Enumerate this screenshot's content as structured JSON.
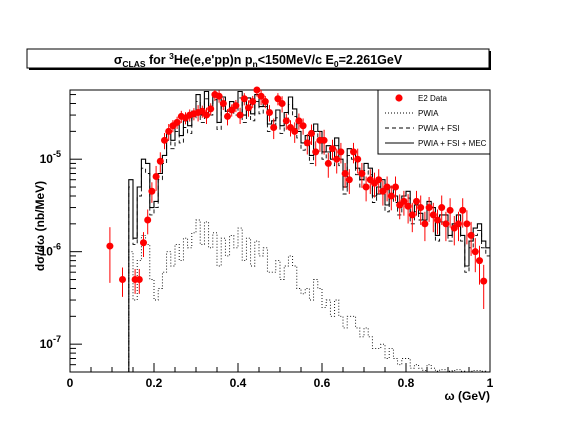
{
  "title": {
    "sigma": "σ",
    "sigma_sub": "CLAS",
    "for": " for ",
    "he_sup": "3",
    "reaction": "He(e,e'pp)n p",
    "pn_sub": "n",
    "cut": "<150MeV/c E",
    "e0_sub": "0",
    "energy": "=2.261GeV"
  },
  "axes": {
    "xlabel": "ω (GeV)",
    "ylabel": "dσ/dω (nb/MeV)",
    "x_ticks": [
      "0",
      "0.2",
      "0.4",
      "0.6",
      "0.8",
      "1"
    ],
    "y_ticks": [
      {
        "base": "10",
        "exp": "-7",
        "value": 1e-07
      },
      {
        "base": "10",
        "exp": "-6",
        "value": 1e-06
      },
      {
        "base": "10",
        "exp": "-5",
        "value": 1e-05
      }
    ]
  },
  "legend": {
    "position": "top-right",
    "items": [
      {
        "label": "E2 Data",
        "style": "marker"
      },
      {
        "label": "PWIA",
        "style": "dotted"
      },
      {
        "label": "PWIA + FSI",
        "style": "dashed"
      },
      {
        "label": "PWIA + FSI + MEC",
        "style": "solid"
      }
    ]
  },
  "colors": {
    "data": "#ff0000",
    "frame": "#000000",
    "curves": "#000000"
  },
  "chart_data": {
    "type": "scatter",
    "xlim": [
      0,
      1
    ],
    "ylim": [
      5e-08,
      5.6e-05
    ],
    "yscale": "log",
    "x_bin_width": 0.01,
    "series": [
      {
        "name": "E2 Data",
        "kind": "points_with_errors",
        "x": [
          0.095,
          0.125,
          0.155,
          0.165,
          0.175,
          0.185,
          0.195,
          0.205,
          0.215,
          0.225,
          0.235,
          0.245,
          0.255,
          0.265,
          0.275,
          0.285,
          0.295,
          0.305,
          0.315,
          0.325,
          0.335,
          0.345,
          0.355,
          0.365,
          0.375,
          0.385,
          0.395,
          0.405,
          0.415,
          0.425,
          0.435,
          0.445,
          0.455,
          0.465,
          0.475,
          0.485,
          0.495,
          0.505,
          0.515,
          0.525,
          0.535,
          0.545,
          0.555,
          0.565,
          0.575,
          0.585,
          0.595,
          0.605,
          0.615,
          0.625,
          0.635,
          0.645,
          0.655,
          0.665,
          0.675,
          0.685,
          0.695,
          0.705,
          0.715,
          0.725,
          0.735,
          0.745,
          0.755,
          0.765,
          0.775,
          0.785,
          0.795,
          0.805,
          0.815,
          0.825,
          0.835,
          0.845,
          0.855,
          0.865,
          0.875,
          0.885,
          0.895,
          0.905,
          0.915,
          0.925,
          0.935,
          0.945,
          0.955,
          0.965,
          0.975,
          0.985
        ],
        "y": [
          1.15e-06,
          5e-07,
          5e-07,
          5e-07,
          1.25e-06,
          2.2e-06,
          4.5e-06,
          6.5e-06,
          9.5e-06,
          1.6e-05,
          2e-05,
          2.3e-05,
          2.5e-05,
          2.9e-05,
          2.8e-05,
          3e-05,
          3.1e-05,
          3.2e-05,
          3.3e-05,
          3e-05,
          3.5e-05,
          5e-05,
          4.8e-05,
          4e-05,
          2.9e-05,
          3.4e-05,
          3.8e-05,
          3e-05,
          4.5e-05,
          3.6e-05,
          4.2e-05,
          5.6e-05,
          4.8e-05,
          4.2e-05,
          3.2e-05,
          2.2e-05,
          4.5e-05,
          4e-05,
          2.6e-05,
          2.2e-05,
          2e-05,
          2.6e-05,
          2.3e-05,
          1.5e-05,
          1.9e-05,
          1.2e-05,
          1.6e-05,
          1.6e-05,
          9e-06,
          1.3e-05,
          1e-05,
          1.2e-05,
          7e-06,
          6e-06,
          1.2e-05,
          1e-05,
          7e-06,
          5e-06,
          6e-06,
          5.5e-06,
          6e-06,
          4.5e-06,
          5e-06,
          4e-06,
          5e-06,
          3.2e-06,
          3.5e-06,
          3.1e-06,
          2.5e-06,
          3.5e-06,
          3e-06,
          2e-06,
          3e-06,
          2.5e-06,
          2.2e-06,
          3e-06,
          2e-06,
          2.8e-06,
          1.8e-06,
          2e-06,
          2.8e-06,
          2e-06,
          1.5e-06,
          1e-06,
          8e-07,
          4.8e-07
        ],
        "err": [
          0.6,
          0.35,
          0.3,
          0.3,
          0.3,
          0.3,
          0.25,
          0.3,
          0.25,
          0.2,
          0.2,
          0.15,
          0.15,
          0.15,
          0.15,
          0.15,
          0.15,
          0.2,
          0.15,
          0.2,
          0.15,
          0.15,
          0.15,
          0.15,
          0.2,
          0.15,
          0.15,
          0.2,
          0.15,
          0.2,
          0.15,
          0.15,
          0.2,
          0.15,
          0.2,
          0.25,
          0.15,
          0.2,
          0.2,
          0.2,
          0.25,
          0.2,
          0.2,
          0.25,
          0.25,
          0.3,
          0.25,
          0.3,
          0.3,
          0.25,
          0.3,
          0.25,
          0.3,
          0.3,
          0.25,
          0.3,
          0.3,
          0.3,
          0.3,
          0.3,
          0.3,
          0.3,
          0.3,
          0.3,
          0.3,
          0.3,
          0.3,
          0.35,
          0.35,
          0.3,
          0.35,
          0.35,
          0.3,
          0.35,
          0.3,
          0.35,
          0.35,
          0.35,
          0.35,
          0.35,
          0.35,
          0.4,
          0.4,
          0.4,
          0.45,
          0.5
        ]
      },
      {
        "name": "PWIA + FSI + MEC",
        "kind": "step",
        "style": "solid",
        "x0": 0.14,
        "y": [
          6e-06,
          1.4e-06,
          5e-06,
          1e-05,
          9e-06,
          3e-06,
          3.5e-06,
          7e-06,
          1.1e-05,
          2e-05,
          1.6e-05,
          2.4e-05,
          1.8e-05,
          2.6e-05,
          2.3e-05,
          3.3e-05,
          5e-05,
          3e-05,
          5.4e-05,
          3.6e-05,
          5.2e-05,
          2.5e-05,
          4.7e-05,
          3.3e-05,
          4.2e-05,
          3.6e-05,
          5.4e-05,
          3e-05,
          4.6e-05,
          3.1e-05,
          5e-05,
          3.7e-05,
          4.4e-05,
          2.4e-05,
          2.6e-05,
          3.4e-05,
          2.3e-05,
          3.2e-05,
          4.7e-05,
          3.5e-05,
          2e-05,
          1.5e-05,
          1.8e-05,
          1.1e-05,
          2.4e-05,
          2e-05,
          1.2e-05,
          1.4e-05,
          1e-05,
          1.7e-05,
          1e-05,
          5e-06,
          1.3e-05,
          1.2e-05,
          8e-06,
          6e-06,
          9e-06,
          8e-06,
          4e-06,
          5e-06,
          6e-06,
          3.2e-06,
          5e-06,
          4e-06,
          3e-06,
          4e-06,
          4.5e-06,
          2.4e-06,
          3.2e-06,
          2.6e-06,
          2.2e-06,
          3.5e-06,
          3e-06,
          1.5e-06,
          2.5e-06,
          2.5e-06,
          1.5e-06,
          2e-06,
          2.5e-06,
          1.5e-06,
          7e-07,
          1.3e-06,
          1.8e-06,
          2e-06,
          1.3e-06,
          1.1e-06
        ]
      },
      {
        "name": "PWIA + FSI",
        "kind": "step",
        "style": "dashed",
        "x0": 0.14,
        "y": [
          5e-06,
          1.2e-06,
          4e-06,
          8e-06,
          7e-06,
          2.5e-06,
          3e-06,
          6e-06,
          9e-06,
          1.6e-05,
          1.3e-05,
          2e-05,
          1.5e-05,
          2.2e-05,
          1.9e-05,
          2.8e-05,
          4.2e-05,
          2.5e-05,
          4.5e-05,
          3e-05,
          4.4e-05,
          2.1e-05,
          4e-05,
          2.8e-05,
          3.5e-05,
          3e-05,
          4.6e-05,
          2.5e-05,
          3.8e-05,
          2.6e-05,
          4.2e-05,
          3.1e-05,
          3.7e-05,
          2e-05,
          2.2e-05,
          2.8e-05,
          1.9e-05,
          2.7e-05,
          3.9e-05,
          2.9e-05,
          1.7e-05,
          1.25e-05,
          1.5e-05,
          9e-06,
          2e-05,
          1.7e-05,
          1e-05,
          1.2e-05,
          8.5e-06,
          1.4e-05,
          8.5e-06,
          4.2e-06,
          1.1e-05,
          1e-05,
          6.8e-06,
          5e-06,
          7.5e-06,
          6.8e-06,
          3.4e-06,
          4.2e-06,
          5e-06,
          2.7e-06,
          4.2e-06,
          3.4e-06,
          2.5e-06,
          3.4e-06,
          3.8e-06,
          2e-06,
          2.7e-06,
          2.2e-06,
          1.9e-06,
          3e-06,
          2.5e-06,
          1.3e-06,
          2.1e-06,
          2.1e-06,
          1.3e-06,
          1.7e-06,
          2.1e-06,
          1.3e-06,
          6e-07,
          1.1e-06,
          1.5e-06,
          1.7e-06,
          1.1e-06,
          9e-07
        ]
      },
      {
        "name": "PWIA",
        "kind": "step",
        "style": "dotted",
        "x0": 0.14,
        "y": [
          1e-06,
          3e-07,
          8e-07,
          1.5e-06,
          1.2e-06,
          5e-07,
          3e-07,
          4e-07,
          6e-07,
          1e-06,
          7e-07,
          1.2e-06,
          8e-07,
          1.4e-06,
          1.1e-06,
          1.6e-06,
          2.2e-06,
          1.2e-06,
          2.1e-06,
          1.1e-06,
          1.6e-06,
          7e-07,
          1.4e-06,
          9e-07,
          1.5e-06,
          1.1e-06,
          1.8e-06,
          8e-07,
          1.4e-06,
          7e-07,
          1.3e-06,
          9e-07,
          1.1e-06,
          6e-07,
          6e-07,
          8e-07,
          5e-07,
          7e-07,
          9e-07,
          7e-07,
          4e-07,
          3.5e-07,
          4e-07,
          3e-07,
          5e-07,
          4e-07,
          2.5e-07,
          3e-07,
          2e-07,
          3e-07,
          2e-07,
          1.5e-07,
          2e-07,
          2e-07,
          1.5e-07,
          1.2e-07,
          1.5e-07,
          1.2e-07,
          9e-08,
          9e-08,
          1e-07,
          7e-08,
          9e-08,
          7e-08,
          6e-08,
          7e-08,
          7e-08,
          5.5e-08,
          6e-08,
          5.5e-08,
          5.2e-08,
          6e-08,
          5.5e-08,
          5.1e-08,
          5.3e-08,
          5.3e-08,
          5.1e-08,
          5.2e-08,
          5.3e-08,
          5.1e-08,
          5e-08,
          5.1e-08,
          5.2e-08,
          5.2e-08,
          5.1e-08,
          5e-08
        ]
      }
    ]
  }
}
